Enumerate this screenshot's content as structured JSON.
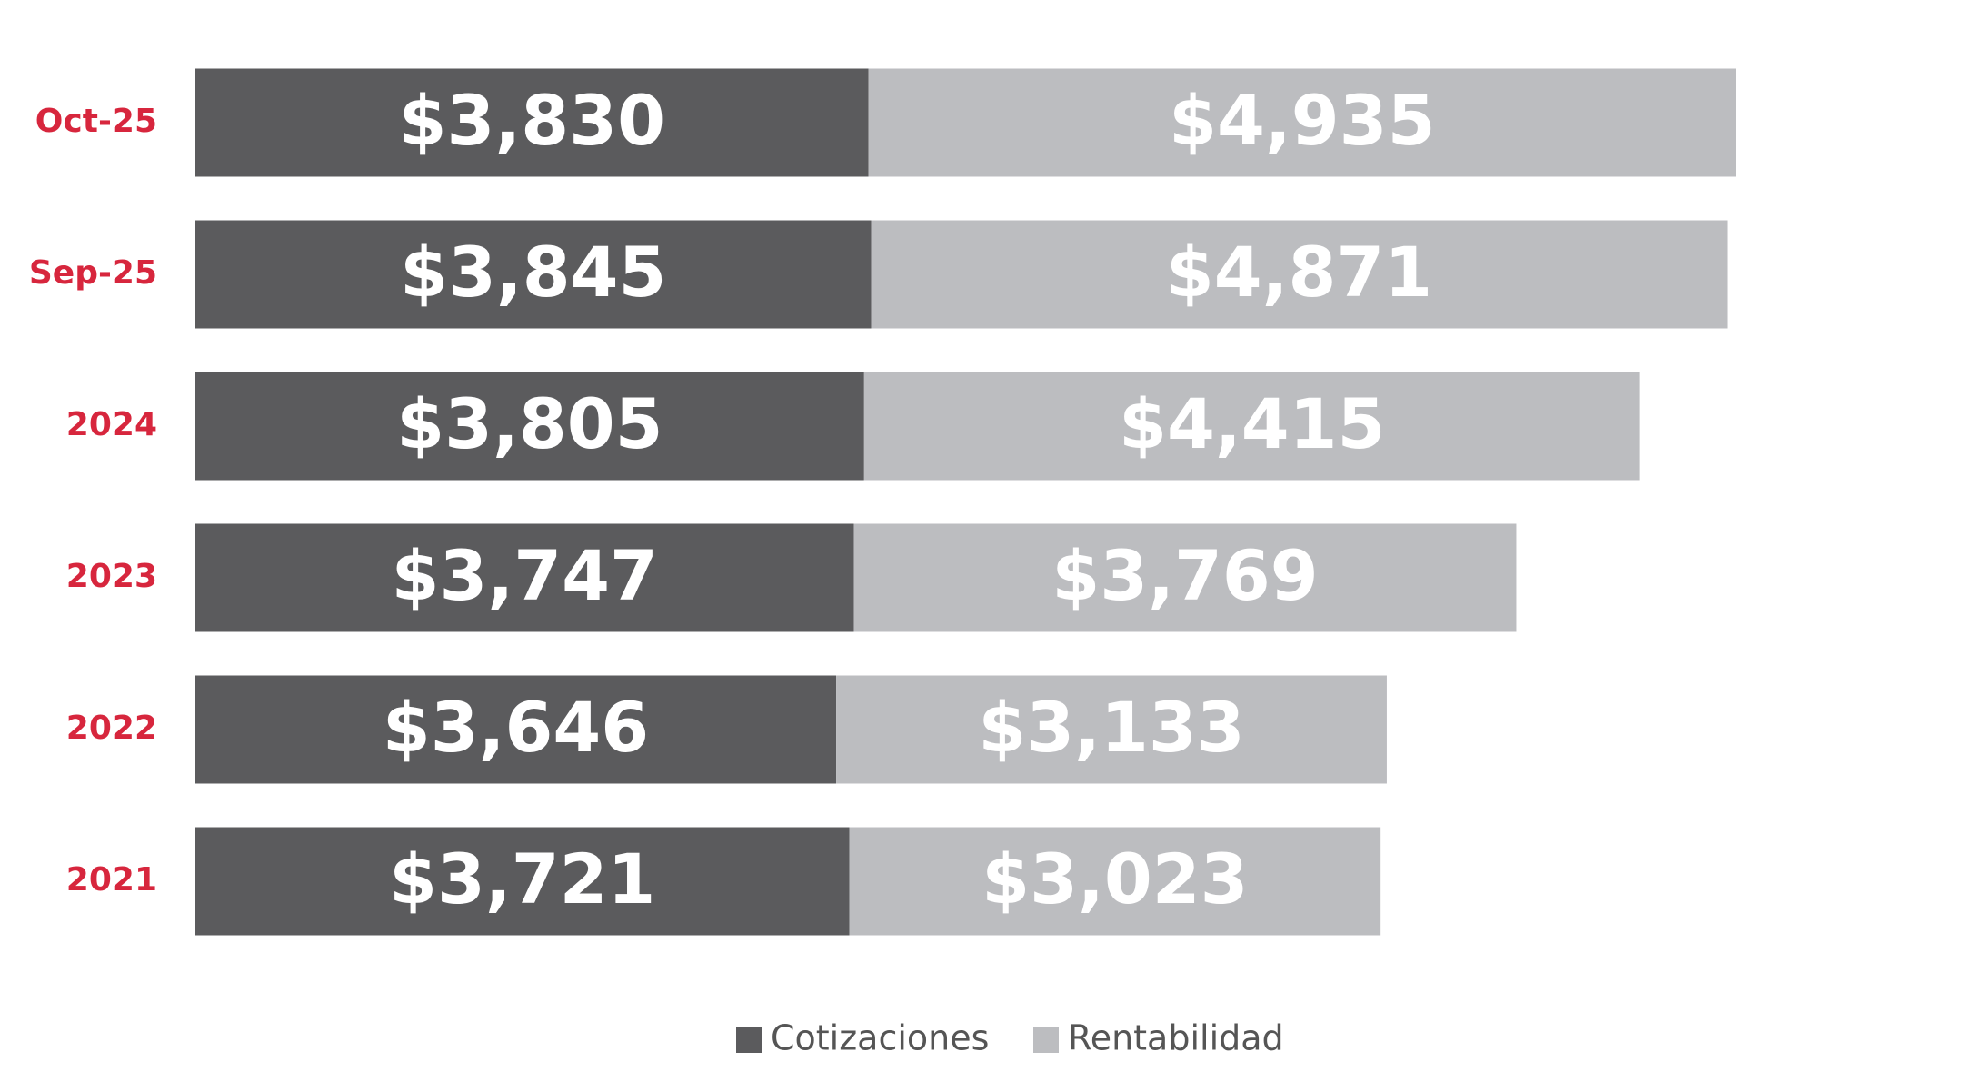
{
  "chart_data": {
    "type": "stacked-bar-horizontal",
    "categories": [
      "Oct-25",
      "Sep-25",
      "2024",
      "2023",
      "2022",
      "2021"
    ],
    "series": [
      {
        "name": "Cotizaciones",
        "color": "#5b5b5d",
        "values": [
          3830,
          3845,
          3805,
          3747,
          3646,
          3721
        ],
        "value_labels": [
          "$3,830",
          "$3,845",
          "$3,805",
          "$3,747",
          "$3,646",
          "$3,721"
        ]
      },
      {
        "name": "Rentabilidad",
        "color": "#bcbdc0",
        "values": [
          4935,
          4871,
          4415,
          3769,
          3133,
          3023
        ],
        "value_labels": [
          "$4,935",
          "$4,871",
          "$4,415",
          "$3,769",
          "$3,133",
          "$3,023"
        ]
      }
    ],
    "category_color": "#d7263d",
    "legend": "bottom"
  }
}
